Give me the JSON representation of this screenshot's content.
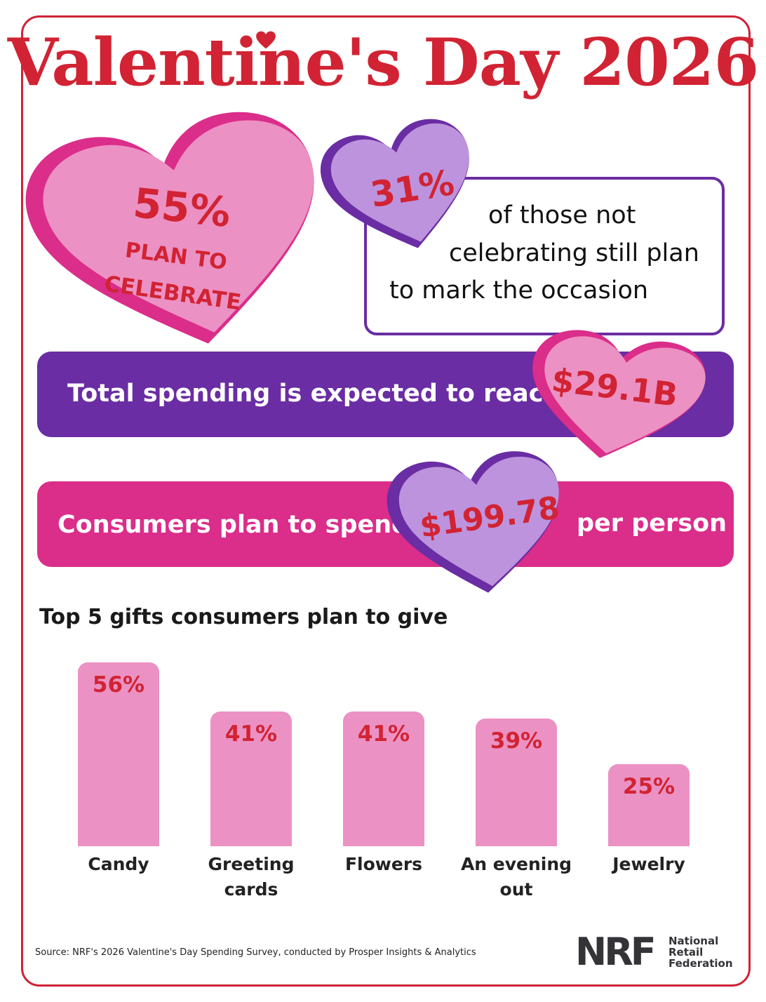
{
  "title": "Valentine's Day 2026",
  "colors": {
    "red": "#d12333",
    "purple": "#6a2da3",
    "pink": "#db2d8a",
    "light_pink": "#ec91c3",
    "lavender": "#bd93dd"
  },
  "celebrate_heart": {
    "percent": "55%",
    "line1": "PLAN TO",
    "line2": "CELEBRATE"
  },
  "not_celebrating": {
    "percent": "31%",
    "line1": "of those not",
    "line2": "celebrating still plan",
    "line3": "to mark the occasion"
  },
  "total_spending": {
    "label": "Total spending is expected to reach",
    "value": "$29.1B"
  },
  "per_person": {
    "label": "Consumers plan to spend",
    "value": "$199.78",
    "suffix": "per person"
  },
  "chart_data": {
    "type": "bar",
    "title": "Top 5 gifts consumers plan to give",
    "categories": [
      "Candy",
      "Greeting\ncards",
      "Flowers",
      "An evening\nout",
      "Jewelry"
    ],
    "values": [
      56,
      41,
      41,
      39,
      25
    ],
    "value_labels": [
      "56%",
      "41%",
      "41%",
      "39%",
      "25%"
    ],
    "unit": "%",
    "ylim": [
      0,
      56
    ],
    "grid": false
  },
  "source": "Source: NRF's 2026 Valentine's Day Spending Survey, conducted by Prosper Insights & Analytics",
  "logo": {
    "mark": "NRF",
    "line1": "National",
    "line2": "Retail",
    "line3": "Federation"
  }
}
